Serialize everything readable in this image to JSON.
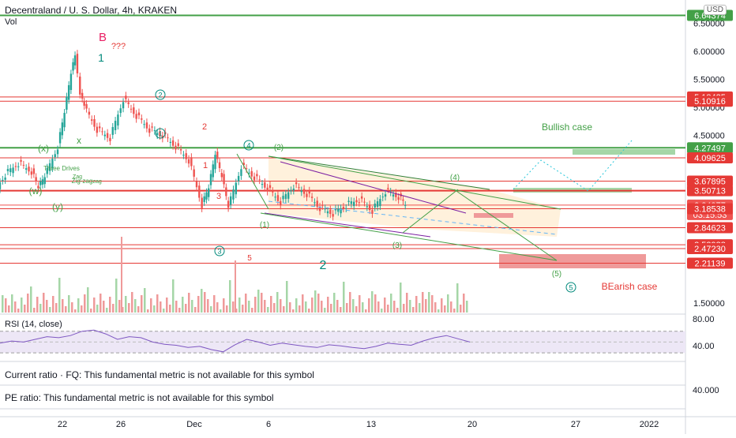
{
  "header": {
    "title": "Decentraland / U. S. Dollar, 4h, KRAKEN",
    "volume_label": "Vol",
    "currency_badge": "USD"
  },
  "chart_data": {
    "type": "candlestick",
    "symbol": "Decentraland / U. S. Dollar",
    "interval": "4h",
    "exchange": "KRAKEN",
    "price_axis_ticks": [
      "6.50000",
      "6.00000",
      "5.50000",
      "5.00000",
      "4.50000",
      "1.50000"
    ],
    "ylim": [
      1.3,
      6.75
    ],
    "x_ticks": [
      "22",
      "26",
      "Dec",
      "6",
      "13",
      "20",
      "27",
      "2022"
    ],
    "price_path": [
      [
        "Nov 18",
        3.45
      ],
      [
        "Nov 19",
        3.8
      ],
      [
        "Nov 20",
        4.0
      ],
      [
        "Nov 21",
        3.85
      ],
      [
        "Nov 21.5",
        3.55
      ],
      [
        "Nov 22",
        3.75
      ],
      [
        "Nov 23",
        4.3
      ],
      [
        "Nov 23.5",
        4.9
      ],
      [
        "Nov 24",
        5.6
      ],
      [
        "Nov 24.3",
        5.9
      ],
      [
        "Nov 24.7",
        5.2
      ],
      [
        "Nov 25",
        5.0
      ],
      [
        "Nov 26",
        4.6
      ],
      [
        "Nov 27",
        4.45
      ],
      [
        "Nov 28",
        5.15
      ],
      [
        "Nov 29",
        4.85
      ],
      [
        "Nov 30",
        4.6
      ],
      [
        "Dec 1",
        4.5
      ],
      [
        "Dec 2",
        4.3
      ],
      [
        "Dec 3",
        4.05
      ],
      [
        "Dec 4",
        3.25
      ],
      [
        "Dec 4.5",
        3.55
      ],
      [
        "Dec 5",
        4.15
      ],
      [
        "Dec 5.5",
        3.75
      ],
      [
        "Dec 6",
        3.2
      ],
      [
        "Dec 7",
        3.95
      ],
      [
        "Dec 8",
        3.75
      ],
      [
        "Dec 9",
        3.55
      ],
      [
        "Dec 10",
        3.3
      ],
      [
        "Dec 11",
        3.6
      ],
      [
        "Dec 12",
        3.45
      ],
      [
        "Dec 13",
        3.2
      ],
      [
        "Dec 14",
        3.1
      ],
      [
        "Dec 15",
        3.25
      ],
      [
        "Dec 16",
        3.35
      ],
      [
        "Dec 17",
        3.15
      ],
      [
        "Dec 18",
        3.5
      ],
      [
        "Dec 19",
        3.4
      ],
      [
        "Dec 19.5",
        3.25
      ]
    ],
    "horizontal_levels": [
      {
        "price": "6.64374",
        "color": "#43a047",
        "badge": "#43a047"
      },
      {
        "price": "5.18425",
        "color": "#e53935",
        "badge": "#e53935"
      },
      {
        "price": "5.10916",
        "color": "#e53935",
        "badge": "#e53935"
      },
      {
        "price": "4.27497",
        "color": "#43a047",
        "badge": "#43a047"
      },
      {
        "price": "4.09625",
        "color": "#e53935",
        "badge": "#e53935"
      },
      {
        "price": "3.67895",
        "color": "#e53935",
        "badge": "#e53935"
      },
      {
        "price": "3.50713",
        "color": "#e53935",
        "badge": "#e53935"
      },
      {
        "price": "3.24977",
        "color": "#ef5350",
        "badge": "#ef5350"
      },
      {
        "price": "03:15:53",
        "color": "none",
        "badge": "#ef5350"
      },
      {
        "price": "3.18538",
        "color": "#e53935",
        "badge": "#e53935"
      },
      {
        "price": "2.84623",
        "color": "#e53935",
        "badge": "#e53935"
      },
      {
        "price": "2.53988",
        "color": "#e53935",
        "badge": "#e53935"
      },
      {
        "price": "2.47230",
        "color": "#e53935",
        "badge": "#e53935"
      },
      {
        "price": "2.21139",
        "color": "#e53935",
        "badge": "#e53935"
      }
    ],
    "annotations": {
      "bullish_case": "Bullish case",
      "bearish_case": "BEarish case",
      "wave_B": "B",
      "wave_qqq": "???",
      "wave_1": "1",
      "wave_2": "2",
      "wave_x": "x",
      "wave_x_paren": "(x)",
      "wave_w": "(w)",
      "wave_y": "(y)",
      "circled_2": "2",
      "circled_1": "1",
      "circled_4": "4",
      "circled_3": "3",
      "circled_5": "5",
      "label_1": "1",
      "label_2": "2",
      "label_3": "3",
      "label_5": "5",
      "paren_1": "(1)",
      "paren_2": "(2)",
      "paren_3": "(3)",
      "paren_4": "(4)",
      "paren_5": "(5)",
      "three_drives": "Three Drives",
      "zigzag": "Zig-zag",
      "zag": "-zag",
      "lbl_zag": "Zag"
    },
    "rsi": {
      "label": "RSI (14, close)",
      "ticks": [
        "80.00",
        "40.00"
      ],
      "ylim": [
        20,
        90
      ],
      "values": [
        48,
        52,
        50,
        55,
        60,
        58,
        62,
        70,
        72,
        65,
        55,
        60,
        58,
        50,
        46,
        44,
        40,
        42,
        36,
        32,
        45,
        55,
        50,
        44,
        48,
        45,
        42,
        40,
        45,
        43,
        40,
        38,
        42,
        48,
        46,
        44,
        52,
        58,
        62,
        56,
        50
      ]
    }
  },
  "fundamentals": {
    "current_ratio": "Current ratio · FQ: This fundamental metric is not available for this symbol",
    "pe_ratio": "PE ratio: This fundamental metric is not available for this symbol",
    "pe_tick": "40.000"
  }
}
